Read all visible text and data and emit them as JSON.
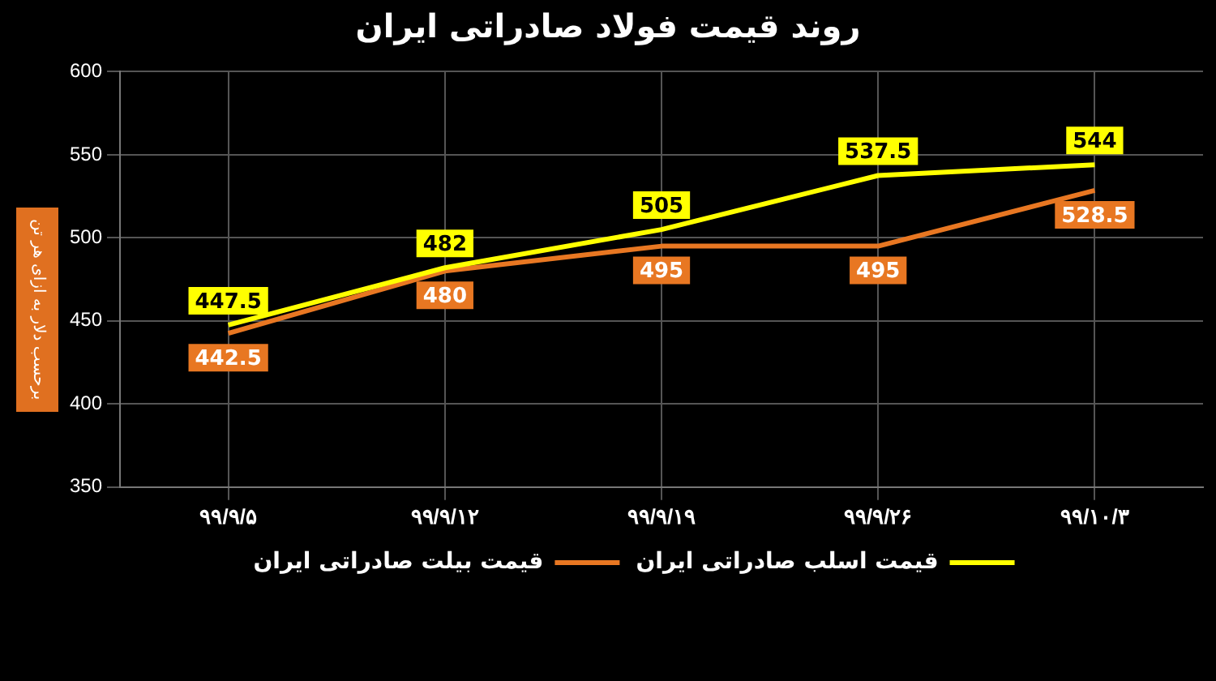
{
  "chart_data": {
    "type": "line",
    "title": "روند قیمت فولاد صادراتی ایران",
    "ylabel": "برحسب دلار به ازای هر تن",
    "categories": [
      "۹۹/۹/۵",
      "۹۹/۹/۱۲",
      "۹۹/۹/۱۹",
      "۹۹/۹/۲۶",
      "۹۹/۱۰/۳"
    ],
    "series": [
      {
        "name": "قیمت اسلب صادراتی ایران",
        "color": "#ffff00",
        "values": [
          447.5,
          482,
          505,
          537.5,
          544
        ]
      },
      {
        "name": "قیمت بیلت صادراتی ایران",
        "color": "#e87722",
        "values": [
          442.5,
          480,
          495,
          495,
          528.5
        ]
      }
    ],
    "ylim": [
      350,
      600
    ],
    "yticks": [
      350,
      400,
      450,
      500,
      550,
      600
    ],
    "grid": true,
    "legend": "bottom",
    "data_labels": true,
    "marker": "none",
    "line_style": "solid"
  }
}
